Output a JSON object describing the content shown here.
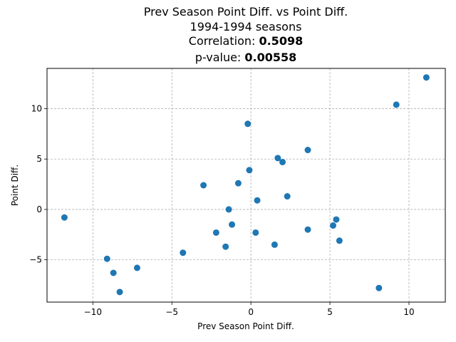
{
  "chart_data": {
    "type": "scatter",
    "title": "Prev Season Point Diff. vs Point Diff.",
    "subtitle": "1994-1994 seasons",
    "correlation_label": "Correlation: ",
    "correlation_value": "0.5098",
    "pvalue_label": "p-value: ",
    "pvalue_value": "0.00558",
    "xlabel": "Prev Season Point Diff.",
    "ylabel": "Point Diff.",
    "xlim": [
      -12.9,
      12.3
    ],
    "ylim": [
      -9.2,
      14.0
    ],
    "xticks": [
      -10,
      -5,
      0,
      5,
      10
    ],
    "yticks": [
      -5,
      0,
      5,
      10
    ],
    "xtick_labels": [
      "−10",
      "−5",
      "0",
      "5",
      "10"
    ],
    "ytick_labels": [
      "−5",
      "0",
      "5",
      "10"
    ],
    "grid": true,
    "point_color": "#1f77b4",
    "points": [
      {
        "x": -11.8,
        "y": -0.8
      },
      {
        "x": -9.1,
        "y": -4.9
      },
      {
        "x": -8.7,
        "y": -6.3
      },
      {
        "x": -8.3,
        "y": -8.2
      },
      {
        "x": -7.2,
        "y": -5.8
      },
      {
        "x": -4.3,
        "y": -4.3
      },
      {
        "x": -3.0,
        "y": 2.4
      },
      {
        "x": -2.2,
        "y": -2.3
      },
      {
        "x": -1.6,
        "y": -3.7
      },
      {
        "x": -1.4,
        "y": 0.0
      },
      {
        "x": -1.2,
        "y": -1.5
      },
      {
        "x": -0.8,
        "y": 2.6
      },
      {
        "x": -0.2,
        "y": 8.5
      },
      {
        "x": -0.1,
        "y": 3.9
      },
      {
        "x": 0.3,
        "y": -2.3
      },
      {
        "x": 0.4,
        "y": 0.9
      },
      {
        "x": 1.5,
        "y": -3.5
      },
      {
        "x": 1.7,
        "y": 5.1
      },
      {
        "x": 2.0,
        "y": 4.7
      },
      {
        "x": 2.3,
        "y": 1.3
      },
      {
        "x": 3.6,
        "y": 5.9
      },
      {
        "x": 3.6,
        "y": -2.0
      },
      {
        "x": 5.2,
        "y": -1.6
      },
      {
        "x": 5.4,
        "y": -1.0
      },
      {
        "x": 5.6,
        "y": -3.1
      },
      {
        "x": 8.1,
        "y": -7.8
      },
      {
        "x": 9.2,
        "y": 10.4
      },
      {
        "x": 11.1,
        "y": 13.1
      }
    ]
  }
}
